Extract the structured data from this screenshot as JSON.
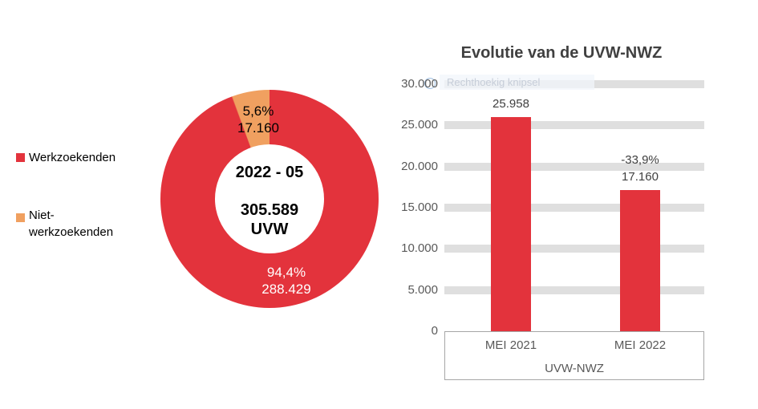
{
  "colors": {
    "red": "#E3333C",
    "orange": "#F0A060",
    "grid_band": "#DFDFDF",
    "axis_text": "#595959",
    "title_text": "#404040",
    "data_label_text": "#404040",
    "axis_box_border": "#A6A6A6",
    "donut_big_label_text": "#FFFFFF",
    "donut_small_label_text": "#000000",
    "watermark_text": "#C6CDD8",
    "watermark_circle": "#85ACD8",
    "background": "#FFFFFF"
  },
  "legend": {
    "items": [
      {
        "label": "Werkzoekenden",
        "color": "#E3333C"
      },
      {
        "label": "Niet-werkzoekenden",
        "color": "#F0A060"
      }
    ]
  },
  "donut": {
    "center": {
      "line1": "2022 - 05",
      "line2": "305.589",
      "line3": "UVW"
    },
    "slices": [
      {
        "name": "Werkzoekenden",
        "pct_label": "94,4%",
        "value_label": "288.429"
      },
      {
        "name": "Niet-werkzoekenden",
        "pct_label": "5,6%",
        "value_label": "17.160"
      }
    ]
  },
  "bar_chart": {
    "title": "Evolutie van de UVW-NWZ",
    "y_ticks": [
      "30.000",
      "25.000",
      "20.000",
      "15.000",
      "10.000",
      "5.000",
      "0"
    ],
    "categories": [
      "MEI 2021",
      "MEI 2022"
    ],
    "bars": [
      {
        "category": "MEI 2021",
        "value_label": "25.958",
        "delta_label": ""
      },
      {
        "category": "MEI 2022",
        "value_label": "17.160",
        "delta_label": "-33,9%"
      }
    ],
    "group_label": "UVW-NWZ"
  },
  "watermark": {
    "text": "Rechthoekig knipsel"
  },
  "chart_data": [
    {
      "type": "pie",
      "subtype": "donut",
      "title": "2022 - 05",
      "labels": [
        "Werkzoekenden",
        "Niet-werkzoekenden"
      ],
      "values": [
        288429,
        17160
      ],
      "percentages": [
        94.4,
        5.6
      ],
      "total": 305589,
      "total_label": "305.589 UVW",
      "colors": [
        "#E3333C",
        "#F0A060"
      ],
      "legend_position": "left",
      "start_angle_deg": 0,
      "direction": "clockwise"
    },
    {
      "type": "bar",
      "title": "Evolutie van de UVW-NWZ",
      "categories": [
        "MEI 2021",
        "MEI 2022"
      ],
      "values": [
        25958,
        17160
      ],
      "data_labels": [
        "25.958",
        "-33,9% 17.160"
      ],
      "pct_change": -33.9,
      "xlabel": "UVW-NWZ",
      "ylabel": "",
      "ylim": [
        0,
        30000
      ],
      "ytick_step": 5000,
      "grid": "horizontal-bands",
      "legend": false,
      "bar_color": "#E3333C"
    }
  ]
}
